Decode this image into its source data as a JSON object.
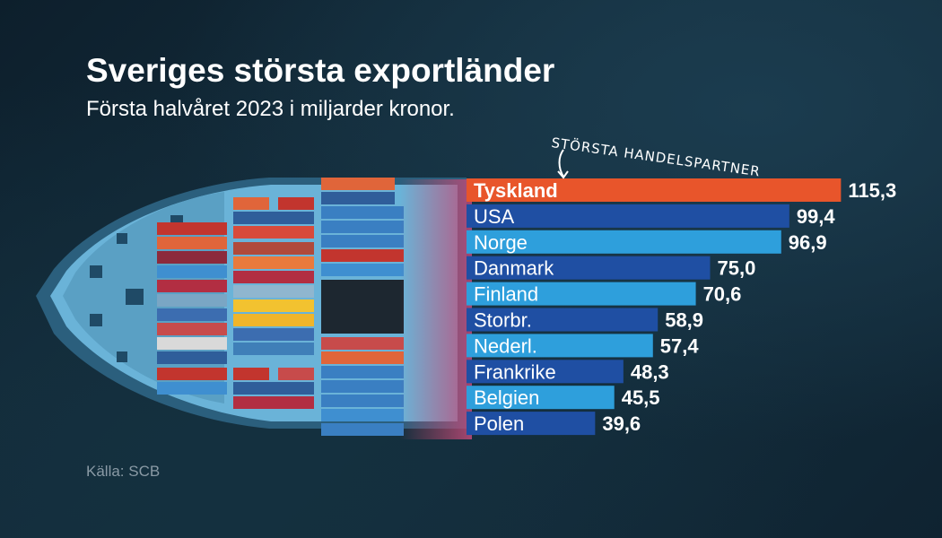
{
  "title": "Sveriges största exportländer",
  "subtitle": "Första halvåret 2023 i miljarder kronor.",
  "annotation": "STÖRSTA HANDELSPARTNER",
  "source": "Källa: SCB",
  "colors": {
    "highlight": "#e8552b",
    "bar_dark": "#1f4fa3",
    "bar_light": "#2e9fdc",
    "value_text": "#ffffff"
  },
  "chart_data": {
    "type": "bar",
    "orientation": "horizontal",
    "title": "Sveriges största exportländer",
    "subtitle": "Första halvåret 2023 i miljarder kronor.",
    "categories": [
      "Tyskland",
      "USA",
      "Norge",
      "Danmark",
      "Finland",
      "Storbr.",
      "Nederl.",
      "Frankrike",
      "Belgien",
      "Polen"
    ],
    "values": [
      115.3,
      99.4,
      96.9,
      75.0,
      70.6,
      58.9,
      57.4,
      48.3,
      45.5,
      39.6
    ],
    "value_labels": [
      "115,3",
      "99,4",
      "96,9",
      "75,0",
      "70,6",
      "58,9",
      "57,4",
      "48,3",
      "45,5",
      "39,6"
    ],
    "highlighted": "Tyskland",
    "grid": false
  }
}
